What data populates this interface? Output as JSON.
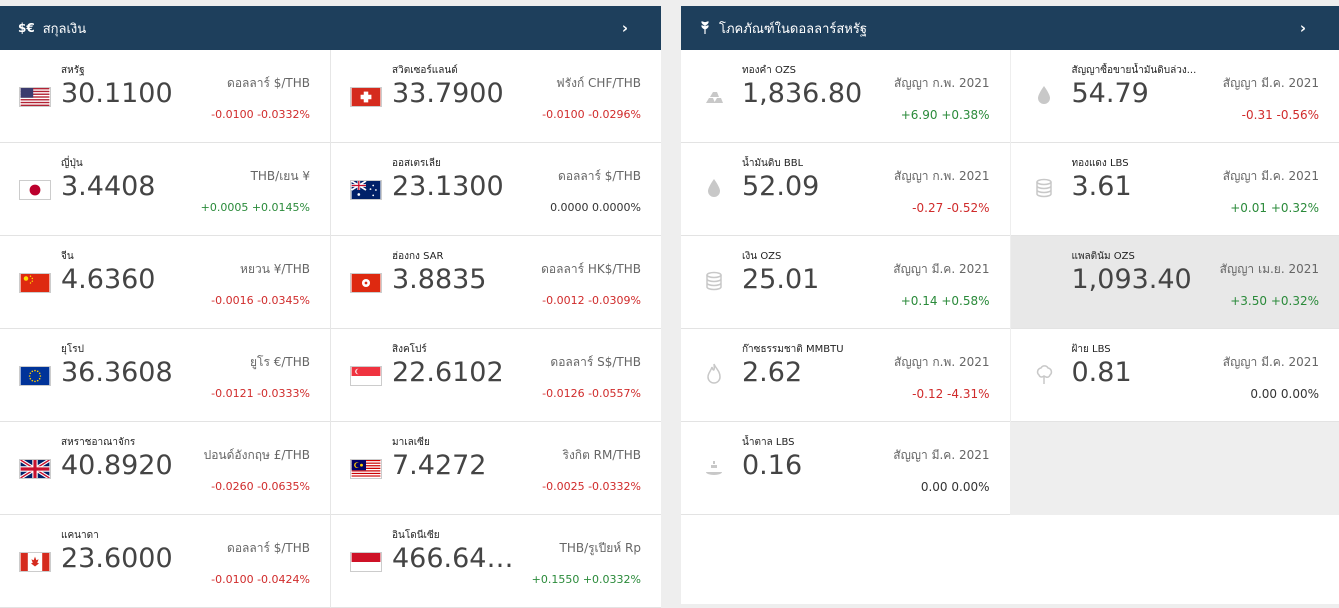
{
  "currency": {
    "header_icon": "$€",
    "title": "สกุลเงิน",
    "items": [
      {
        "name": "สหรัฐ",
        "value": "30.1100",
        "pair": "ดอลลาร์ $/THB",
        "change": "-0.0100 -0.0332%",
        "dir": "neg",
        "flag": "us"
      },
      {
        "name": "สวิตเซอร์แลนด์",
        "value": "33.7900",
        "pair": "ฟรังก์ CHF/THB",
        "change": "-0.0100 -0.0296%",
        "dir": "neg",
        "flag": "ch"
      },
      {
        "name": "ญี่ปุ่น",
        "value": "3.4408",
        "pair": "THB/เยน ¥",
        "change": "+0.0005 +0.0145%",
        "dir": "pos",
        "flag": "jp"
      },
      {
        "name": "ออสเตรเลีย",
        "value": "23.1300",
        "pair": "ดอลลาร์ $/THB",
        "change": "0.0000 0.0000%",
        "dir": "neu",
        "flag": "au"
      },
      {
        "name": "จีน",
        "value": "4.6360",
        "pair": "หยวน ¥/THB",
        "change": "-0.0016 -0.0345%",
        "dir": "neg",
        "flag": "cn"
      },
      {
        "name": "ฮ่องกง SAR",
        "value": "3.8835",
        "pair": "ดอลลาร์ HK$/THB",
        "change": "-0.0012 -0.0309%",
        "dir": "neg",
        "flag": "hk"
      },
      {
        "name": "ยุโรป",
        "value": "36.3608",
        "pair": "ยูโร €/THB",
        "change": "-0.0121 -0.0333%",
        "dir": "neg",
        "flag": "eu"
      },
      {
        "name": "สิงคโปร์",
        "value": "22.6102",
        "pair": "ดอลลาร์ S$/THB",
        "change": "-0.0126 -0.0557%",
        "dir": "neg",
        "flag": "sg"
      },
      {
        "name": "สหราชอาณาจักร",
        "value": "40.8920",
        "pair": "ปอนด์อังกฤษ £/THB",
        "change": "-0.0260 -0.0635%",
        "dir": "neg",
        "flag": "gb"
      },
      {
        "name": "มาเลเซีย",
        "value": "7.4272",
        "pair": "ริงกิต RM/THB",
        "change": "-0.0025 -0.0332%",
        "dir": "neg",
        "flag": "my"
      },
      {
        "name": "แคนาดา",
        "value": "23.6000",
        "pair": "ดอลลาร์ $/THB",
        "change": "-0.0100 -0.0424%",
        "dir": "neg",
        "flag": "ca"
      },
      {
        "name": "อินโดนีเซีย",
        "value": "466.64…",
        "pair": "THB/รูเปียห์ Rp",
        "change": "+0.1550 +0.0332%",
        "dir": "pos",
        "flag": "id"
      }
    ]
  },
  "commodities": {
    "header_icon": "wheat-icon",
    "title": "โภคภัณฑ์ในดอลลาร์สหรัฐ",
    "items": [
      {
        "name": "ทองคำ OZS",
        "value": "1,836.80",
        "contract": "สัญญา ก.พ. 2021",
        "change": "+6.90 +0.38%",
        "dir": "pos",
        "icon": "gold-bars-icon"
      },
      {
        "name": "สัญญาซื้อขายน้ำมันดิบล่วง...",
        "value": "54.79",
        "contract": "สัญญา มี.ค. 2021",
        "change": "-0.31 -0.56%",
        "dir": "neg",
        "icon": "oil-drop-icon"
      },
      {
        "name": "น้ำมันดิบ BBL",
        "value": "52.09",
        "contract": "สัญญา ก.พ. 2021",
        "change": "-0.27 -0.52%",
        "dir": "neg",
        "icon": "oil-drop-icon"
      },
      {
        "name": "ทองแดง LBS",
        "value": "3.61",
        "contract": "สัญญา มี.ค. 2021",
        "change": "+0.01 +0.32%",
        "dir": "pos",
        "icon": "coins-icon"
      },
      {
        "name": "เงิน OZS",
        "value": "25.01",
        "contract": "สัญญา มี.ค. 2021",
        "change": "+0.14 +0.58%",
        "dir": "pos",
        "icon": "coins-icon"
      },
      {
        "name": "แพลตินัม OZS",
        "value": "1,093.40",
        "contract": "สัญญา เม.ย. 2021",
        "change": "+3.50 +0.32%",
        "dir": "pos",
        "icon": "",
        "highlight": true
      },
      {
        "name": "ก๊าซธรรมชาติ MMBTU",
        "value": "2.62",
        "contract": "สัญญา ก.พ. 2021",
        "change": "-0.12 -4.31%",
        "dir": "neg",
        "icon": "flame-icon"
      },
      {
        "name": "ฝ้าย LBS",
        "value": "0.81",
        "contract": "สัญญา มี.ค. 2021",
        "change": "0.00 0.00%",
        "dir": "neu",
        "icon": "cotton-icon"
      },
      {
        "name": "น้ำตาล LBS",
        "value": "0.16",
        "contract": "สัญญา มี.ค. 2021",
        "change": "0.00 0.00%",
        "dir": "neu",
        "icon": "sugar-icon"
      }
    ]
  }
}
